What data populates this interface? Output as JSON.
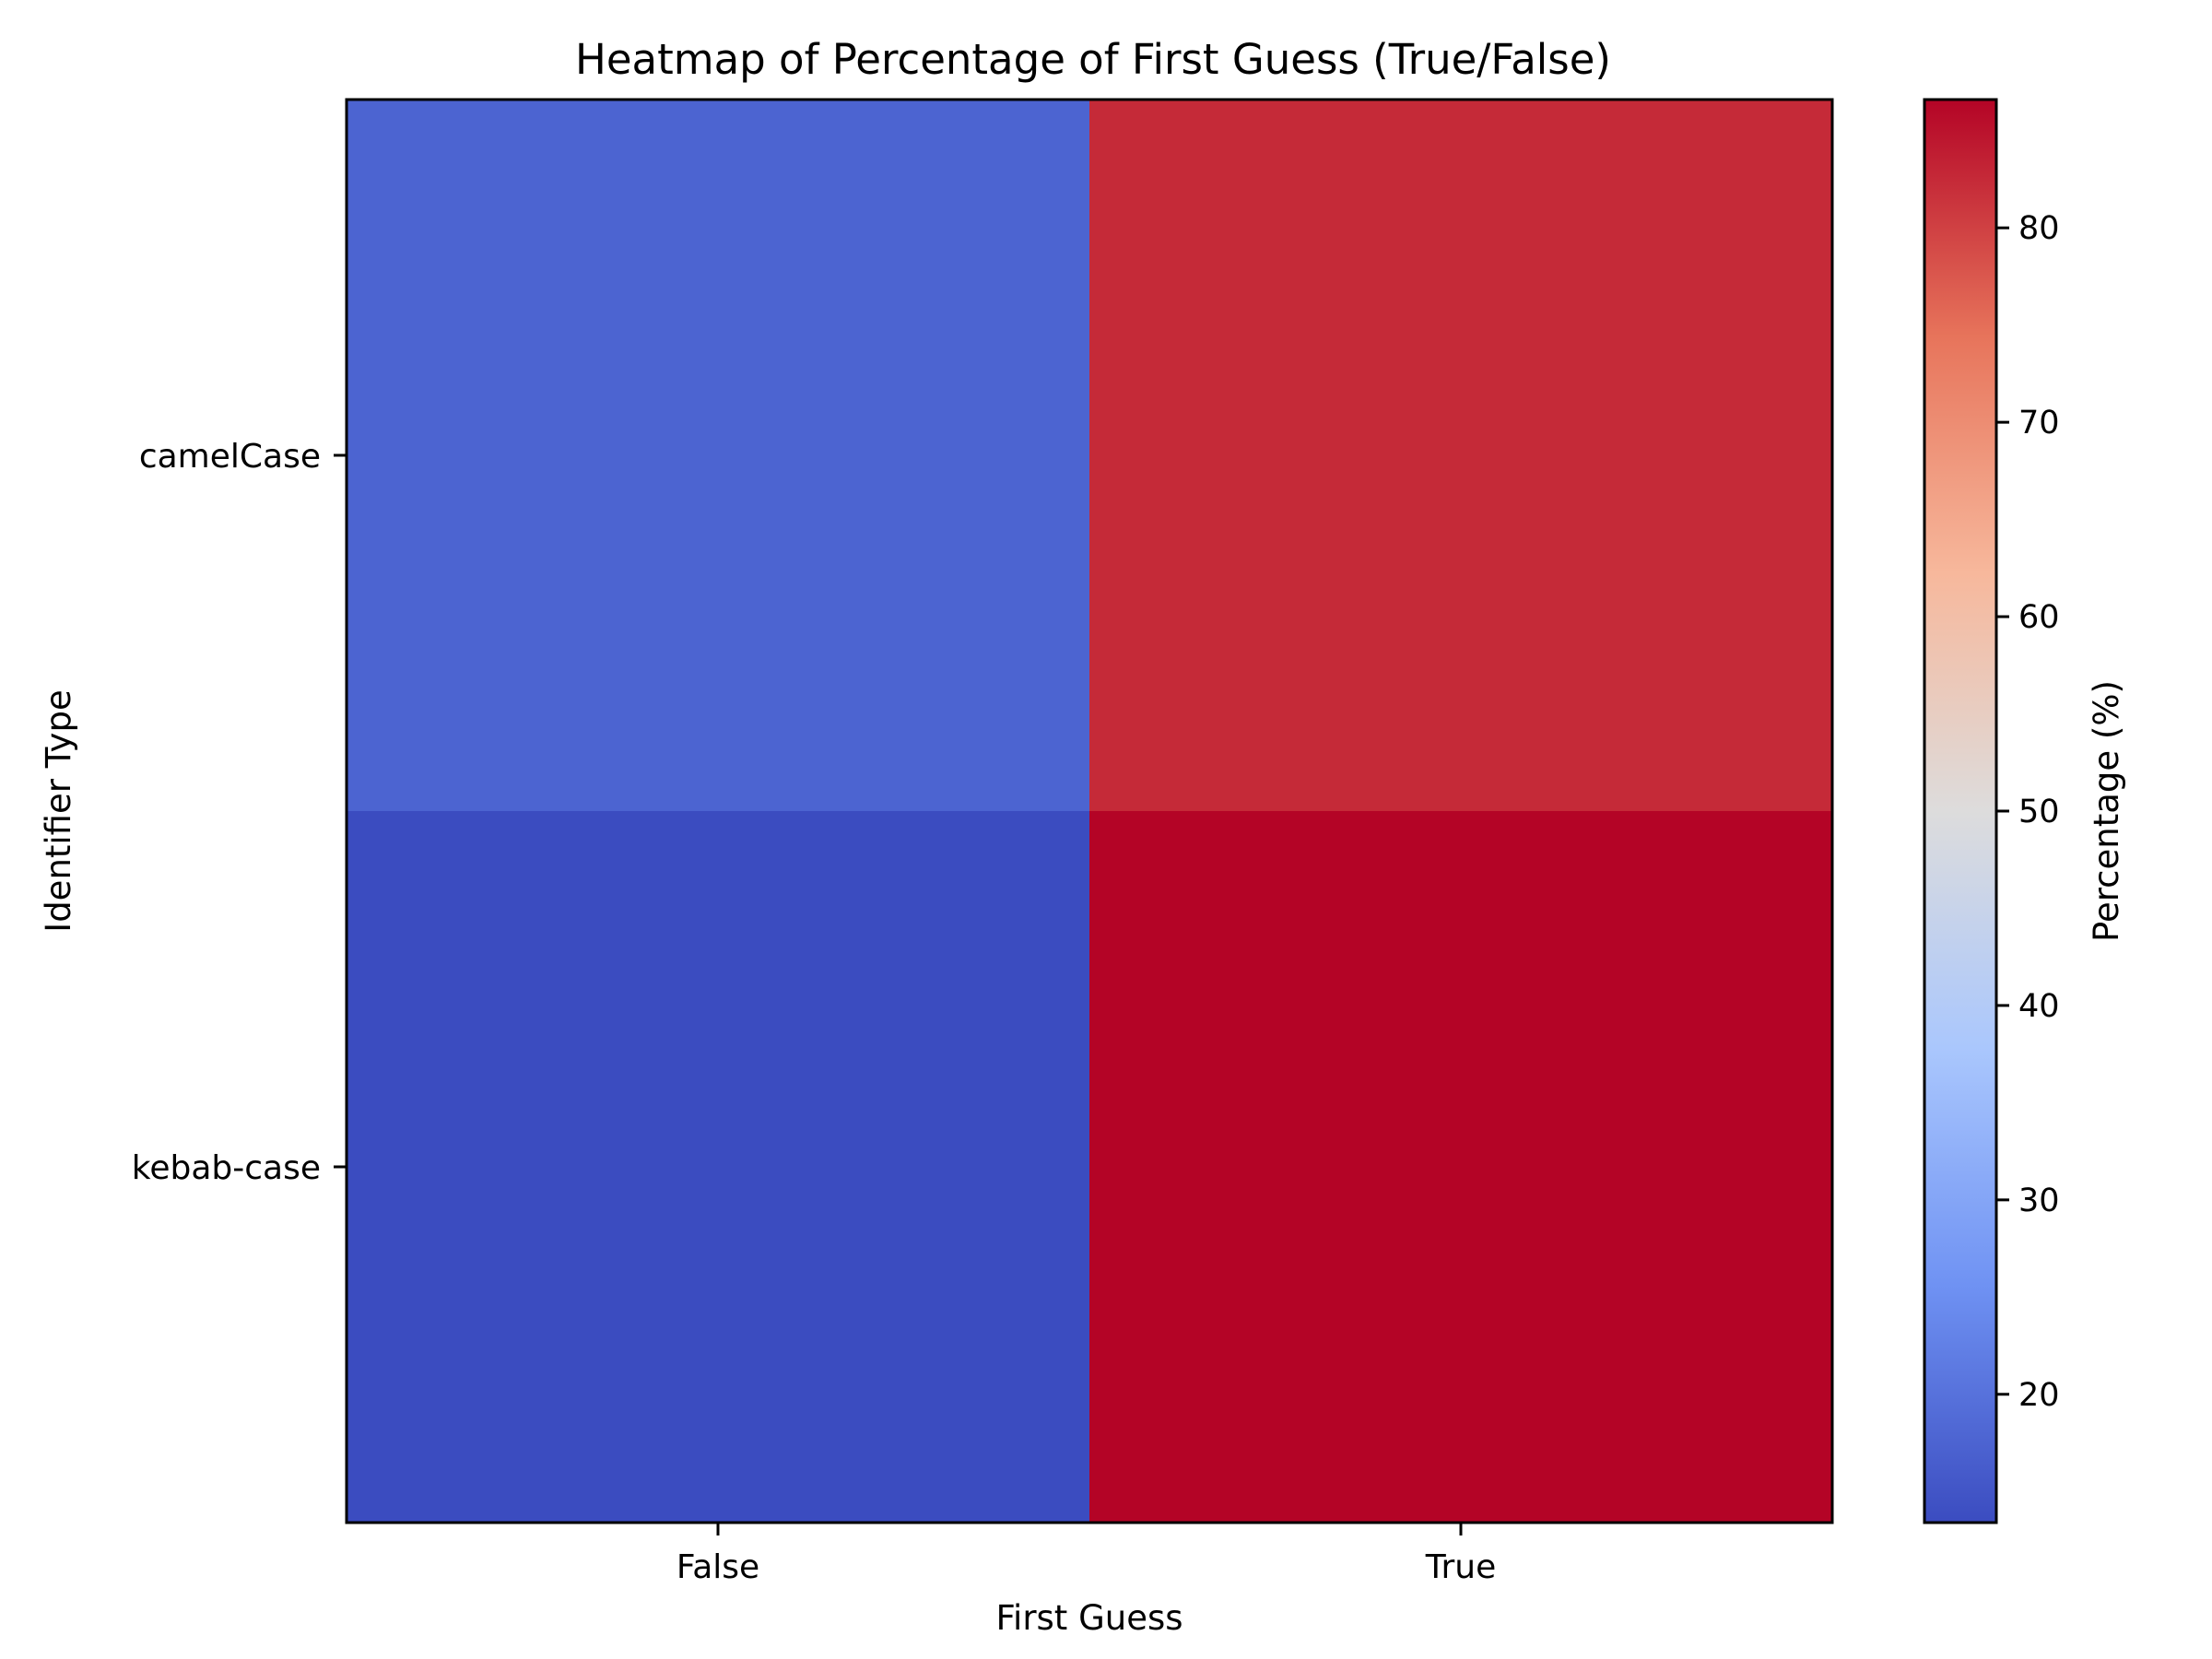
{
  "chart_data": {
    "type": "heatmap",
    "title": "Heatmap of Percentage of First Guess (True/False)",
    "xlabel": "First Guess",
    "ylabel": "Identifier Type",
    "x_categories": [
      "False",
      "True"
    ],
    "y_categories": [
      "camelCase",
      "kebab-case"
    ],
    "values": [
      [
        17.5,
        82.5
      ],
      [
        13.4,
        86.6
      ]
    ],
    "colorbar": {
      "label": "Percentage (%)",
      "range": [
        13.4,
        86.6
      ],
      "ticks": [
        20,
        30,
        40,
        50,
        60,
        70,
        80
      ],
      "colormap": "coolwarm"
    },
    "colors": {
      "coolwarm_stops": [
        "#3b4cc0",
        "#6f92f3",
        "#aac7fd",
        "#dddcdc",
        "#f7b89c",
        "#e7745b",
        "#b40426"
      ]
    }
  }
}
